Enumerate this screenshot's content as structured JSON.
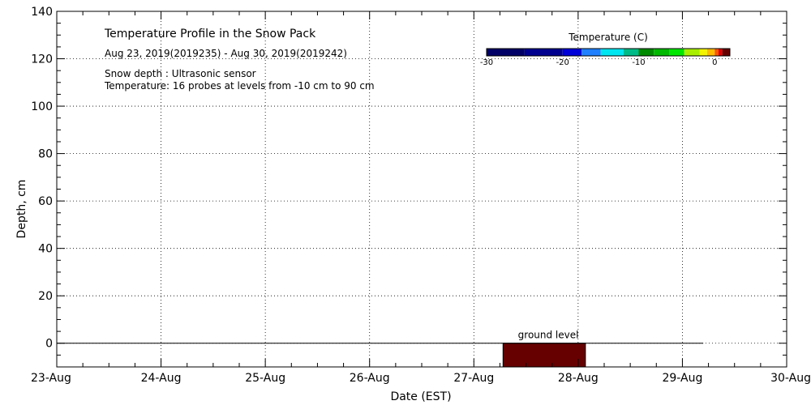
{
  "chart_data": {
    "type": "heatmap",
    "title": "Temperature Profile in the Snow Pack",
    "subtitle": "Aug 23, 2019(2019235) - Aug 30, 2019(2019242)",
    "notes": [
      "Snow depth : Ultrasonic sensor",
      "Temperature: 16 probes at levels from -10 cm to 90 cm"
    ],
    "xlabel": "Date (EST)",
    "ylabel": "Depth, cm",
    "x_ticks": [
      "23-Aug",
      "24-Aug",
      "25-Aug",
      "26-Aug",
      "27-Aug",
      "28-Aug",
      "29-Aug",
      "30-Aug"
    ],
    "xlim": [
      0,
      7
    ],
    "ylim": [
      -10,
      140
    ],
    "y_ticks": [
      0,
      20,
      40,
      60,
      80,
      100,
      120,
      140
    ],
    "grid": true,
    "ground_level": {
      "label": "ground level",
      "depth": 0,
      "x_end": 6.2
    },
    "cells": [
      {
        "x_start": 4.28,
        "x_end": 5.07,
        "y_bottom": -10,
        "y_top": 0,
        "value": 1.5
      }
    ],
    "colorbar": {
      "title": "Temperature (C)",
      "min": -30,
      "max": 2,
      "tick_labels": [
        "-30",
        "-20",
        "-10",
        "0"
      ],
      "tick_values": [
        -30,
        -20,
        -10,
        0
      ],
      "bands": [
        {
          "from": -30,
          "to": -25,
          "color": "#000066"
        },
        {
          "from": -25,
          "to": -20,
          "color": "#00008f"
        },
        {
          "from": -20,
          "to": -17.5,
          "color": "#0000d8"
        },
        {
          "from": -17.5,
          "to": -15,
          "color": "#2080ff"
        },
        {
          "from": -15,
          "to": -12,
          "color": "#00e6f0"
        },
        {
          "from": -12,
          "to": -10,
          "color": "#00bb88"
        },
        {
          "from": -10,
          "to": -8,
          "color": "#008a00"
        },
        {
          "from": -8,
          "to": -6,
          "color": "#00b800"
        },
        {
          "from": -6,
          "to": -4,
          "color": "#00e600"
        },
        {
          "from": -4,
          "to": -2,
          "color": "#a8ee00"
        },
        {
          "from": -2,
          "to": -1,
          "color": "#f4f400"
        },
        {
          "from": -1,
          "to": 0,
          "color": "#ffbb00"
        },
        {
          "from": 0,
          "to": 0.5,
          "color": "#ff5500"
        },
        {
          "from": 0.5,
          "to": 1,
          "color": "#dd0000"
        },
        {
          "from": 1,
          "to": 2,
          "color": "#660000"
        }
      ]
    }
  }
}
